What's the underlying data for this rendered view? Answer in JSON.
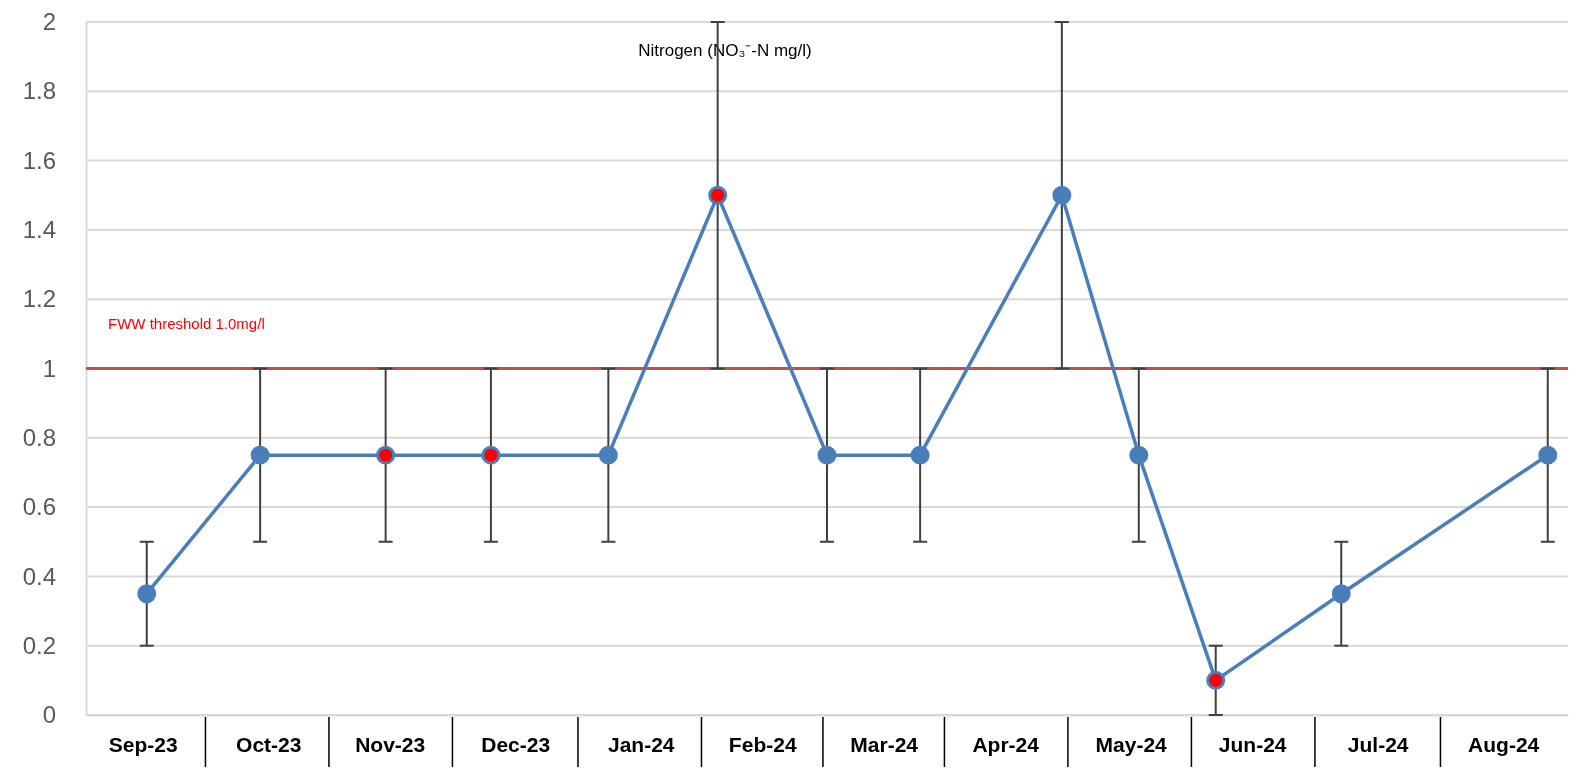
{
  "chart_data": {
    "type": "line",
    "title": "Nitrogen (NO₃⁻-N  mg/l)",
    "x": [
      "2023-09-16",
      "2023-10-14",
      "2023-11-14",
      "2023-12-10",
      "2024-01-08",
      "2024-02-04",
      "2024-03-02",
      "2024-03-25",
      "2024-04-29",
      "2024-05-18",
      "2024-06-06",
      "2024-07-07",
      "2024-08-27"
    ],
    "series": [
      {
        "color": "#4a7ebb",
        "values": [
          0.35,
          0.75,
          0.75,
          0.75,
          0.75,
          1.5,
          0.75,
          0.75,
          1.5,
          0.75,
          0.1,
          0.35,
          0.75
        ],
        "colors": [
          "#4a7ebb",
          "#4a7ebb",
          "#ff0000",
          "#ff0000",
          "#4a7ebb",
          "#ff0000",
          "#4a7ebb",
          "#4a7ebb",
          "#4a7ebb",
          "#4a7ebb",
          "#ff0000",
          "#4a7ebb",
          "#4a7ebb"
        ],
        "errors": [
          [
            0.2,
            0.5
          ],
          [
            0.5,
            1
          ],
          [
            0.5,
            1
          ],
          [
            0.5,
            1
          ],
          [
            0.5,
            1
          ],
          [
            1,
            2
          ],
          [
            0.5,
            1
          ],
          [
            0.5,
            1
          ],
          [
            1,
            2
          ],
          [
            0.5,
            1
          ],
          [
            0,
            0.2
          ],
          [
            0.2,
            0.5
          ],
          [
            0.5,
            1
          ]
        ]
      }
    ],
    "xlim": [
      "2023-09-01",
      "2024-09-01"
    ],
    "xticks": [
      {
        "value": "2023-09-15",
        "label": "Sep-23"
      },
      {
        "value": "2023-10-16",
        "label": "Oct-23"
      },
      {
        "value": "2023-11-15",
        "label": "Nov-23"
      },
      {
        "value": "2023-12-16",
        "label": "Dec-23"
      },
      {
        "value": "2024-01-16",
        "label": "Jan-24"
      },
      {
        "value": "2024-02-15",
        "label": "Feb-24"
      },
      {
        "value": "2024-03-16",
        "label": "Mar-24"
      },
      {
        "value": "2024-04-15",
        "label": "Apr-24"
      },
      {
        "value": "2024-05-16",
        "label": "May-24"
      },
      {
        "value": "2024-06-15",
        "label": "Jun-24"
      },
      {
        "value": "2024-07-16",
        "label": "Jul-24"
      },
      {
        "value": "2024-08-16",
        "label": "Aug-24"
      }
    ],
    "ylim": [
      0,
      2
    ],
    "yticks": [
      0,
      0.2,
      0.4,
      0.6,
      0.8,
      1,
      1.2,
      1.4,
      1.6,
      1.8,
      2
    ],
    "grid": "y",
    "marker": "circle",
    "line_style": "solid",
    "ref_lines": [
      {
        "axis": "y",
        "value": 1,
        "label": "FWW threshold 1.0mg/l",
        "color": "#c0504d"
      }
    ]
  }
}
